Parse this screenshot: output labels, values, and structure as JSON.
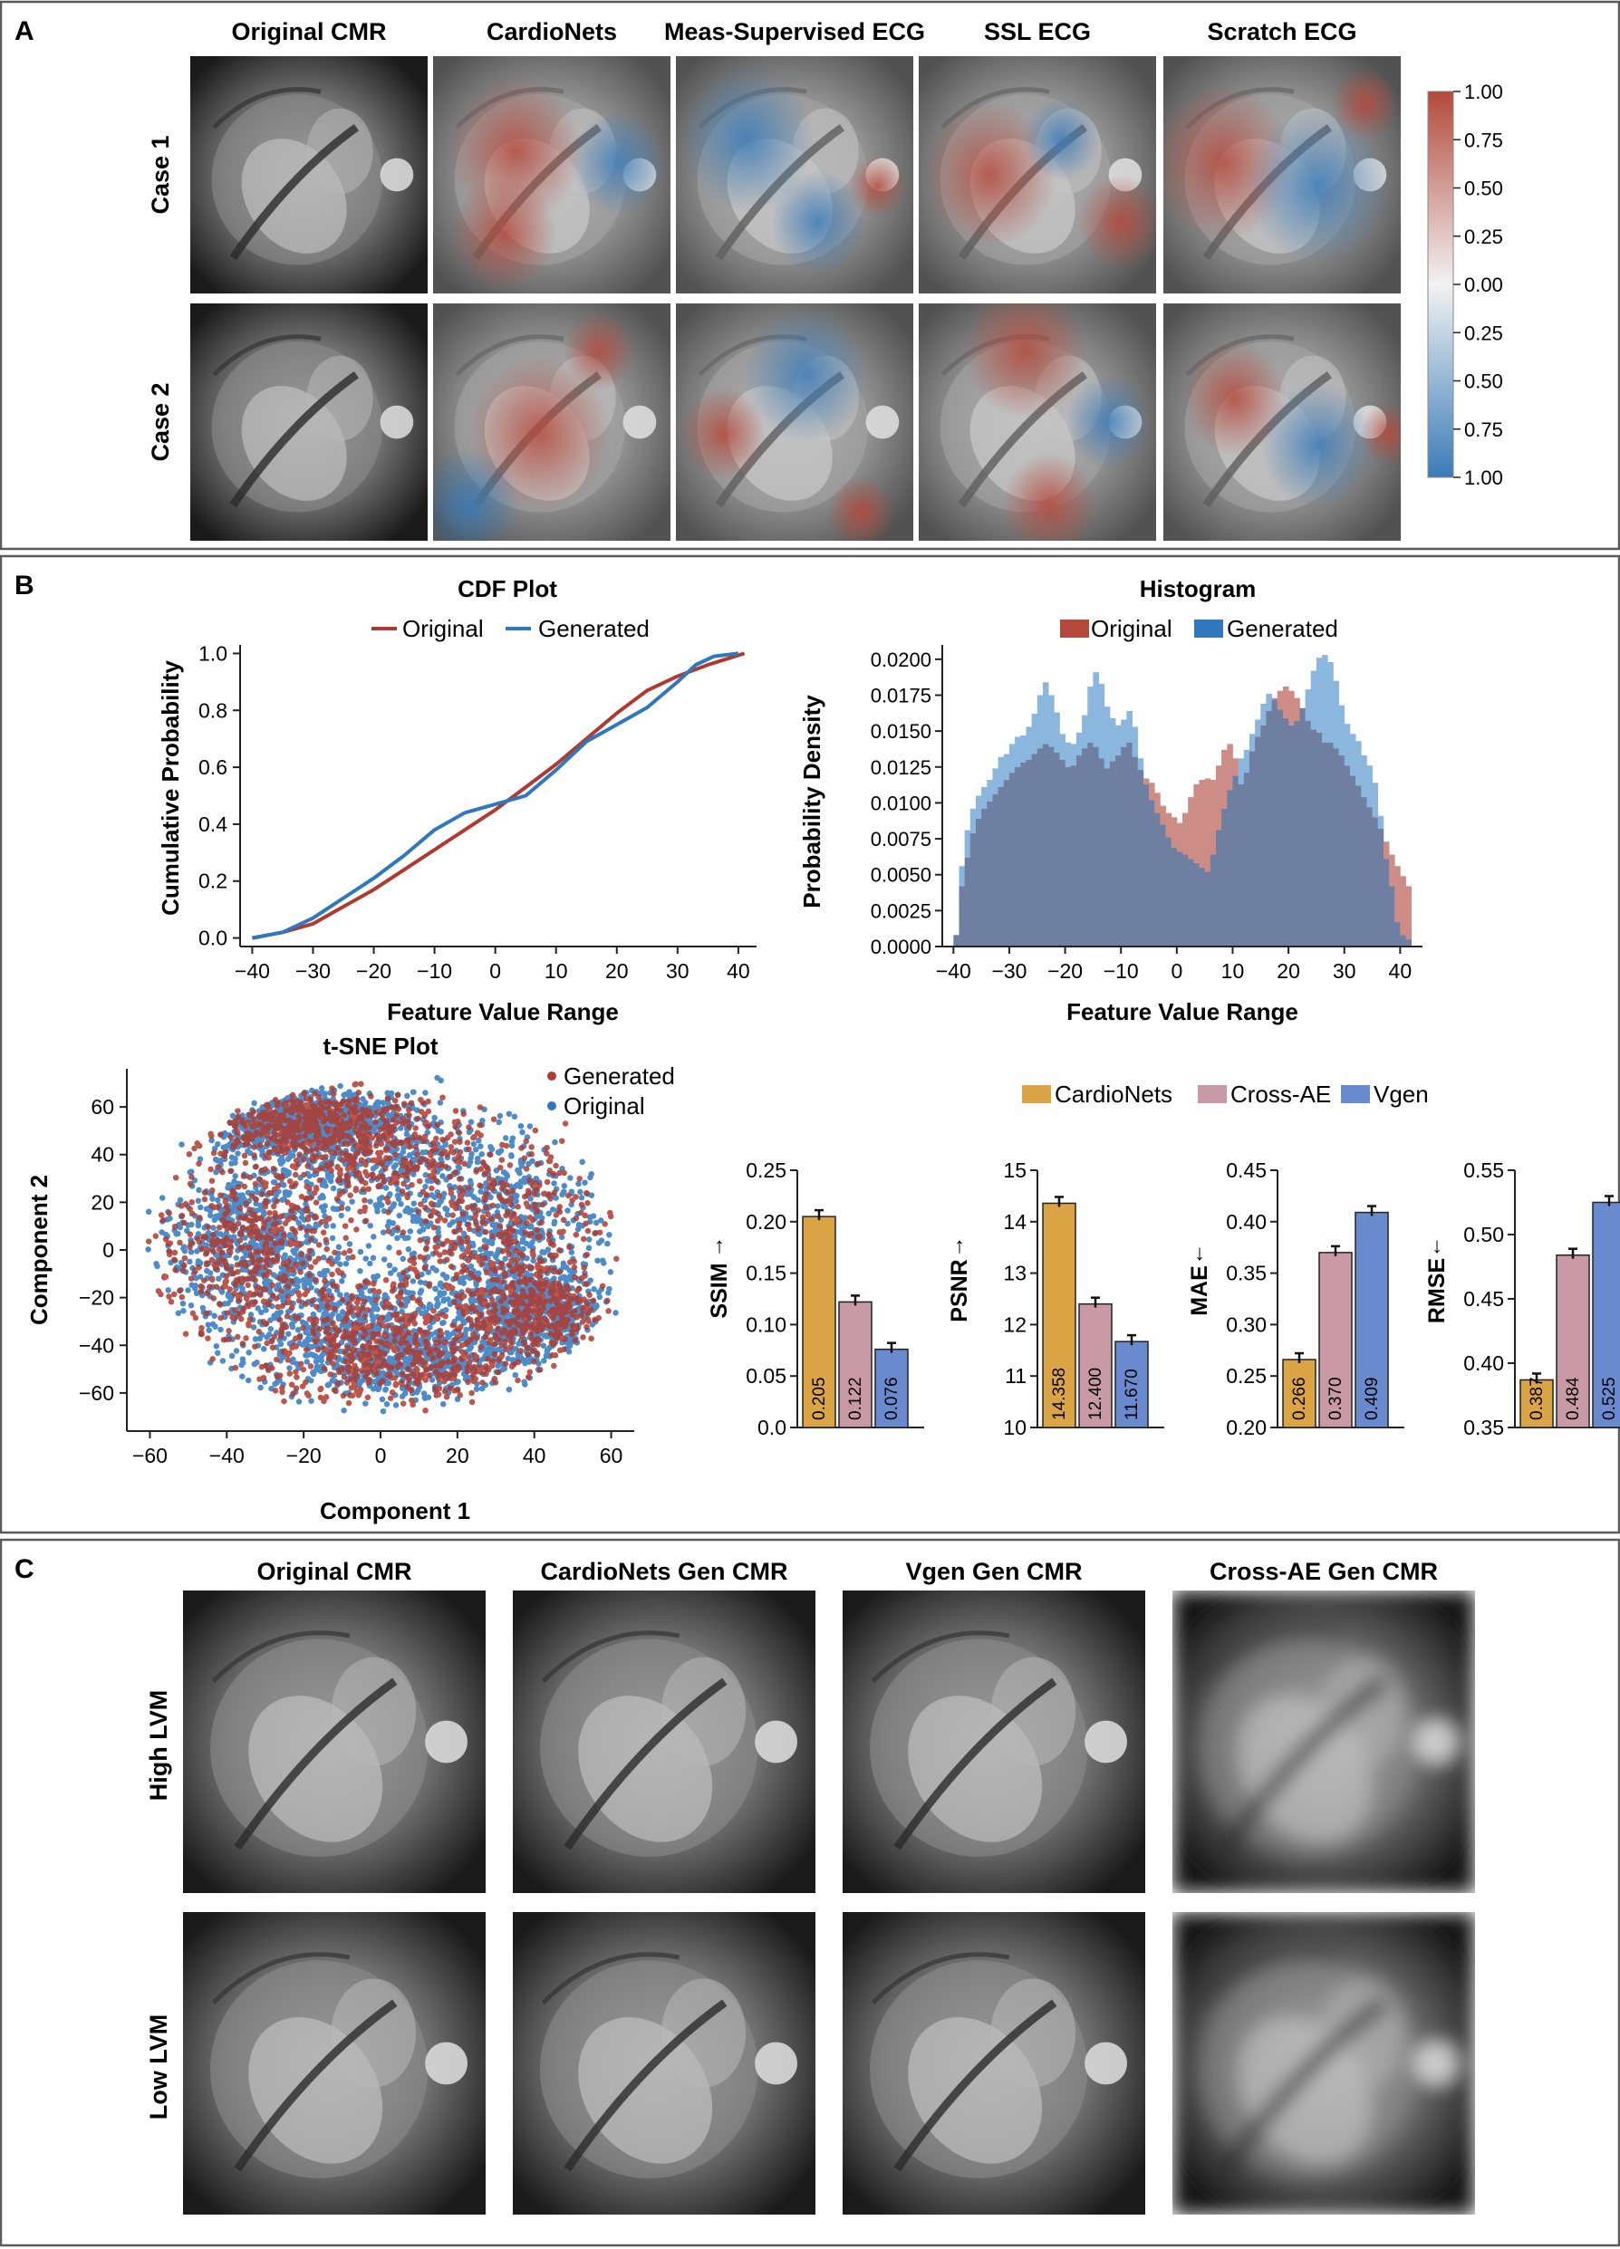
{
  "colors": {
    "frame": "#5a5a5a",
    "orig_red": "#b03a2e",
    "gen_blue": "#2f78c0",
    "hist_red": "#cd8d86",
    "hist_blue": "#8bb7de",
    "hist_overlap": "#6f7fa1",
    "cardionets": "#dba445",
    "crossae": "#c99aa5",
    "vgen": "#6a8ad0",
    "heat_pos": "#b4493c",
    "heat_neg": "#3b7bb8"
  },
  "panels": {
    "a": {
      "letter": "A",
      "columns": [
        "Original CMR",
        "CardioNets",
        "Meas-Supervised ECG",
        "SSL ECG",
        "Scratch ECG"
      ],
      "rows": [
        "Case 1",
        "Case 2"
      ],
      "colorbar_ticks": [
        "1.00",
        "0.75",
        "0.50",
        "0.25",
        "0.00",
        "0.25",
        "0.50",
        "0.75",
        "1.00"
      ]
    },
    "b": {
      "letter": "B"
    },
    "c": {
      "letter": "C",
      "columns": [
        "Original CMR",
        "CardioNets Gen CMR",
        "Vgen Gen CMR",
        "Cross-AE Gen CMR"
      ],
      "rows": [
        "High LVM",
        "Low LVM"
      ]
    }
  },
  "chart_data": [
    {
      "type": "line",
      "id": "cdf",
      "title": "CDF Plot",
      "xlabel": "Feature Value Range",
      "ylabel": "Cumulative Probability",
      "xlim": [
        -42,
        43
      ],
      "ylim": [
        -0.03,
        1.03
      ],
      "xticks": [
        -40,
        -30,
        -20,
        -10,
        0,
        10,
        20,
        30,
        40
      ],
      "yticks": [
        0.0,
        0.2,
        0.4,
        0.6,
        0.8,
        1.0
      ],
      "legend": [
        "Original",
        "Generated"
      ],
      "series": [
        {
          "name": "Original",
          "color": "#b03a2e",
          "x": [
            -40,
            -35,
            -30,
            -25,
            -20,
            -15,
            -10,
            -5,
            0,
            5,
            10,
            15,
            20,
            25,
            30,
            35,
            38,
            41
          ],
          "y": [
            0.0,
            0.02,
            0.05,
            0.11,
            0.17,
            0.24,
            0.31,
            0.38,
            0.45,
            0.53,
            0.61,
            0.7,
            0.79,
            0.87,
            0.92,
            0.96,
            0.98,
            1.0
          ]
        },
        {
          "name": "Generated",
          "color": "#2f78c0",
          "x": [
            -40,
            -35,
            -30,
            -25,
            -20,
            -15,
            -10,
            -5,
            0,
            5,
            10,
            15,
            20,
            25,
            30,
            33,
            36,
            40
          ],
          "y": [
            0.0,
            0.02,
            0.07,
            0.14,
            0.21,
            0.29,
            0.38,
            0.44,
            0.47,
            0.5,
            0.59,
            0.69,
            0.75,
            0.81,
            0.9,
            0.96,
            0.99,
            1.0
          ]
        }
      ]
    },
    {
      "type": "bar",
      "id": "histogram",
      "title": "Histogram",
      "xlabel": "Feature Value Range",
      "ylabel": "Probability Density",
      "xlim": [
        -42,
        44
      ],
      "ylim": [
        0,
        0.021
      ],
      "xticks": [
        -40,
        -30,
        -20,
        -10,
        0,
        10,
        20,
        30,
        40
      ],
      "yticks": [
        "0.0000",
        "0.0025",
        "0.0050",
        "0.0075",
        "0.0100",
        "0.0125",
        "0.0150",
        "0.0175",
        "0.0200"
      ],
      "legend": [
        "Original",
        "Generated"
      ],
      "bin_start": -40,
      "bin_width": 1,
      "series": [
        {
          "name": "Original",
          "values": [
            0.0008,
            0.0042,
            0.0062,
            0.0079,
            0.0089,
            0.0096,
            0.0101,
            0.0106,
            0.0111,
            0.0116,
            0.0121,
            0.0125,
            0.0128,
            0.013,
            0.0134,
            0.0138,
            0.0141,
            0.0139,
            0.0135,
            0.013,
            0.0125,
            0.0126,
            0.0133,
            0.0138,
            0.0142,
            0.0139,
            0.0131,
            0.0124,
            0.0129,
            0.0133,
            0.0139,
            0.0142,
            0.0132,
            0.0123,
            0.0117,
            0.0114,
            0.0107,
            0.0098,
            0.0093,
            0.009,
            0.0086,
            0.0093,
            0.0104,
            0.0113,
            0.0116,
            0.0117,
            0.0116,
            0.0126,
            0.0137,
            0.0141,
            0.0131,
            0.0113,
            0.0121,
            0.0136,
            0.0146,
            0.0154,
            0.0164,
            0.0173,
            0.0178,
            0.0181,
            0.0178,
            0.0173,
            0.0166,
            0.0157,
            0.0151,
            0.0149,
            0.0142,
            0.0142,
            0.0138,
            0.0133,
            0.0126,
            0.0119,
            0.0112,
            0.0104,
            0.0097,
            0.009,
            0.0082,
            0.0073,
            0.0064,
            0.0056,
            0.0049,
            0.0042
          ]
        },
        {
          "name": "Generated",
          "values": [
            0.0008,
            0.0056,
            0.0081,
            0.0096,
            0.0105,
            0.0111,
            0.0116,
            0.0124,
            0.0132,
            0.0134,
            0.0141,
            0.0146,
            0.0147,
            0.0153,
            0.0162,
            0.0175,
            0.0184,
            0.0175,
            0.0163,
            0.0148,
            0.0142,
            0.0141,
            0.0149,
            0.0161,
            0.0181,
            0.0191,
            0.0183,
            0.0167,
            0.0159,
            0.0154,
            0.0158,
            0.0164,
            0.0153,
            0.0131,
            0.0113,
            0.0102,
            0.0093,
            0.0085,
            0.0076,
            0.0069,
            0.0066,
            0.0064,
            0.0061,
            0.0058,
            0.0055,
            0.0052,
            0.0064,
            0.0081,
            0.0096,
            0.0109,
            0.0119,
            0.0131,
            0.0137,
            0.0148,
            0.0158,
            0.0169,
            0.0176,
            0.0172,
            0.0165,
            0.0159,
            0.0154,
            0.0157,
            0.0166,
            0.0179,
            0.0192,
            0.0201,
            0.0203,
            0.0198,
            0.0185,
            0.0168,
            0.0155,
            0.0148,
            0.0143,
            0.0133,
            0.0126,
            0.0114,
            0.0091,
            0.0061,
            0.0042,
            0.0017,
            0.0008,
            0.0005
          ]
        }
      ]
    },
    {
      "type": "scatter",
      "id": "tsne",
      "title": "t-SNE Plot",
      "xlabel": "Component 1",
      "ylabel": "Component 2",
      "xlim": [
        -66,
        66
      ],
      "ylim": [
        -76,
        76
      ],
      "xticks": [
        -60,
        -40,
        -20,
        0,
        20,
        40,
        60
      ],
      "yticks": [
        60,
        40,
        20,
        0,
        -20,
        -40,
        -60
      ],
      "legend": [
        "Generated",
        "Original"
      ],
      "point_count": 6400
    },
    {
      "type": "bar",
      "id": "metrics",
      "legend": [
        "CardioNets",
        "Cross-AE",
        "Vgen"
      ],
      "categories": [
        "CardioNets",
        "Cross-AE",
        "Vgen"
      ],
      "subplots": [
        {
          "metric": "SSIM",
          "arrow": "↑",
          "ylim": [
            0.0,
            0.25
          ],
          "yticks": [
            "0.25",
            "0.20",
            "0.15",
            "0.10",
            "0.05",
            "0.0"
          ],
          "values": [
            0.205,
            0.122,
            0.076
          ],
          "labels": [
            "0.205",
            "0.122",
            "0.076"
          ]
        },
        {
          "metric": "PSNR",
          "arrow": "↑",
          "ylim": [
            10,
            15
          ],
          "yticks": [
            "15",
            "14",
            "13",
            "12",
            "11",
            "10"
          ],
          "values": [
            14.358,
            12.4,
            11.67
          ],
          "labels": [
            "14.358",
            "12.400",
            "11.670"
          ]
        },
        {
          "metric": "MAE",
          "arrow": "↓",
          "ylim": [
            0.2,
            0.45
          ],
          "yticks": [
            "0.45",
            "0.40",
            "0.35",
            "0.30",
            "0.25",
            "0.20"
          ],
          "values": [
            0.266,
            0.37,
            0.409
          ],
          "labels": [
            "0.266",
            "0.370",
            "0.409"
          ]
        },
        {
          "metric": "RMSE",
          "arrow": "↓",
          "ylim": [
            0.35,
            0.55
          ],
          "yticks": [
            "0.55",
            "0.50",
            "0.45",
            "0.40",
            "0.35"
          ],
          "values": [
            0.387,
            0.484,
            0.525
          ],
          "labels": [
            "0.387",
            "0.484",
            "0.525"
          ]
        }
      ]
    }
  ]
}
